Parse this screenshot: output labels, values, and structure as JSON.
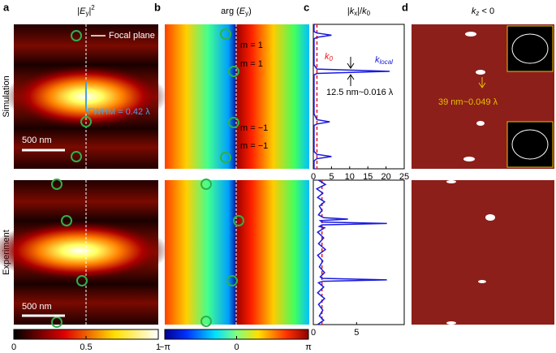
{
  "figure": {
    "panel_labels": [
      "a",
      "b",
      "c",
      "d"
    ],
    "row_labels": [
      "Simulation",
      "Experiment"
    ],
    "panel_a": {
      "title": {
        "pre": "|",
        "var": "E",
        "sub": "y",
        "post": "|",
        "sup": "2"
      },
      "focal_plane": "Focal plane",
      "fwhm": "FWHM = 0.42 λ",
      "scale_bars": [
        "500 nm",
        "500 nm"
      ]
    },
    "panel_b": {
      "title": {
        "pre": "arg (",
        "var": "E",
        "sub": "y",
        "post": ")"
      },
      "mode_labels": [
        "m = 1",
        "m = 1",
        "m = −1",
        "m = −1"
      ]
    },
    "panel_c": {
      "title": {
        "pre": "|",
        "var": "k",
        "sub": "x",
        "mid": "|/",
        "var2": "k",
        "sub2": "0"
      },
      "k0_label": {
        "var": "k",
        "sub": "0"
      },
      "klocal_label": {
        "var": "k",
        "sub": "local"
      },
      "resolution": "12.5 nm~0.016 λ"
    },
    "panel_d": {
      "title": {
        "var": "k",
        "sub": "z",
        "post": " < 0"
      },
      "resolution": "39 nm~0.049 λ"
    },
    "colorbars": [
      {
        "ticks": [
          0,
          0.5,
          1
        ],
        "lim": [
          0,
          1
        ]
      },
      {
        "ticks": [
          {
            "value": -3.14159,
            "label": "−π"
          },
          0,
          {
            "value": 3.14159,
            "label": "π"
          }
        ],
        "lim": [
          -3.14159,
          3.14159
        ]
      }
    ]
  },
  "chart_data": [
    {
      "type": "line",
      "orientation": "horizontal",
      "xlim": [
        0,
        25
      ],
      "xticks": [
        0,
        5,
        10,
        15,
        20,
        25
      ],
      "reference_line": {
        "value": 1,
        "color": "#e8141c"
      },
      "positions": [
        0,
        0.05,
        0.06,
        0.075,
        0.09,
        0.1,
        0.2,
        0.28,
        0.31,
        0.325,
        0.34,
        0.35,
        0.5,
        0.62,
        0.66,
        0.675,
        0.69,
        0.7,
        0.8,
        0.88,
        0.9,
        0.915,
        0.93,
        0.945,
        1
      ],
      "series": [
        {
          "color": "#1a1adc",
          "values": [
            0.2,
            0.2,
            1,
            5,
            1,
            0.2,
            0.2,
            0.2,
            1,
            21,
            1,
            0.2,
            0.2,
            0.2,
            1,
            4.5,
            1,
            0.2,
            0.2,
            0.2,
            1,
            5,
            1,
            0.2,
            0.2
          ]
        }
      ]
    },
    {
      "type": "line",
      "orientation": "horizontal",
      "xlim": [
        0,
        10.5
      ],
      "xticks": [
        0,
        5
      ],
      "reference_line": {
        "value": 1,
        "color": "#e8141c"
      },
      "positions": [
        0,
        0.03,
        0.06,
        0.09,
        0.12,
        0.15,
        0.18,
        0.21,
        0.24,
        0.26,
        0.27,
        0.28,
        0.29,
        0.3,
        0.31,
        0.32,
        0.33,
        0.36,
        0.4,
        0.44,
        0.48,
        0.52,
        0.56,
        0.6,
        0.64,
        0.67,
        0.68,
        0.69,
        0.7,
        0.71,
        0.74,
        0.78,
        0.82,
        0.86,
        0.9,
        0.94,
        0.97,
        1
      ],
      "series": [
        {
          "color": "#1a1adc",
          "values": [
            0.6,
            1.4,
            0.4,
            1.1,
            0.5,
            1.3,
            0.7,
            1.0,
            0.6,
            1.2,
            4,
            0.8,
            1,
            8.5,
            1,
            0.7,
            1.3,
            0.5,
            1.2,
            0.6,
            1.4,
            0.5,
            1.1,
            0.7,
            1.3,
            0.8,
            1.0,
            8.5,
            1.1,
            0.6,
            1.2,
            0.5,
            1.3,
            0.6,
            1.1,
            0.7,
            1.2,
            0.5
          ]
        }
      ]
    }
  ]
}
